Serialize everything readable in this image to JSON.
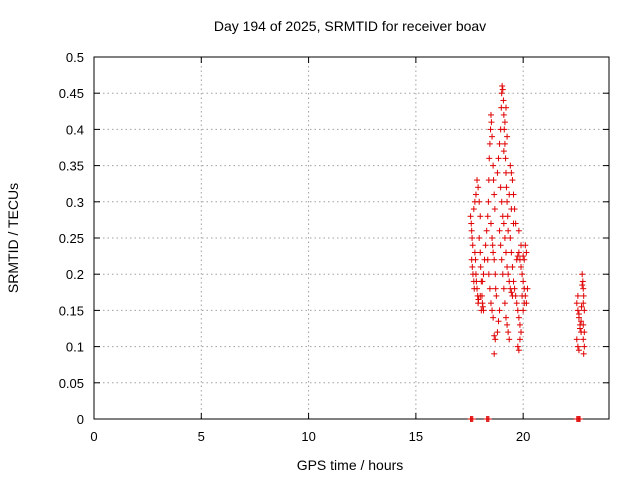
{
  "chart_data": {
    "type": "scatter",
    "title": "Day 194 of 2025, SRMTID for receiver boav",
    "xlabel": "GPS time / hours",
    "ylabel": "SRMTID / TECUs",
    "xlim": [
      0,
      24
    ],
    "ylim": [
      0,
      0.5
    ],
    "xticks": [
      0,
      5,
      10,
      15,
      20
    ],
    "xtick_labels": [
      "0",
      "5",
      "10",
      "15",
      "20"
    ],
    "yticks": [
      0,
      0.05,
      0.1,
      0.15,
      0.2,
      0.25,
      0.3,
      0.35,
      0.4,
      0.45,
      0.5
    ],
    "ytick_labels": [
      "0",
      "0.05",
      "0.1",
      "0.15",
      "0.2",
      "0.25",
      "0.3",
      "0.35",
      "0.4",
      "0.45",
      "0.5"
    ],
    "grid": true,
    "marker": "+",
    "color": "#e00000",
    "points": [
      [
        17.55,
        0.28
      ],
      [
        17.58,
        0.27
      ],
      [
        17.6,
        0.26
      ],
      [
        17.62,
        0.25
      ],
      [
        17.65,
        0.24
      ],
      [
        17.6,
        0.22
      ],
      [
        17.63,
        0.21
      ],
      [
        17.66,
        0.2
      ],
      [
        17.7,
        0.19
      ],
      [
        17.72,
        0.18
      ],
      [
        17.75,
        0.23
      ],
      [
        17.78,
        0.22
      ],
      [
        17.8,
        0.2
      ],
      [
        17.82,
        0.19
      ],
      [
        17.85,
        0.18
      ],
      [
        17.88,
        0.17
      ],
      [
        17.9,
        0.16
      ],
      [
        17.7,
        0.29
      ],
      [
        17.75,
        0.3
      ],
      [
        17.8,
        0.31
      ],
      [
        17.85,
        0.33
      ],
      [
        17.9,
        0.32
      ],
      [
        17.95,
        0.3
      ],
      [
        18.0,
        0.28
      ],
      [
        17.95,
        0.25
      ],
      [
        18.0,
        0.23
      ],
      [
        18.02,
        0.21
      ],
      [
        18.05,
        0.19
      ],
      [
        18.08,
        0.17
      ],
      [
        18.1,
        0.16
      ],
      [
        18.12,
        0.155
      ],
      [
        18.15,
        0.15
      ],
      [
        18.0,
        0.17
      ],
      [
        17.92,
        0.165
      ],
      [
        18.05,
        0.15
      ],
      [
        18.1,
        0.19
      ],
      [
        18.15,
        0.2
      ],
      [
        18.2,
        0.22
      ],
      [
        18.25,
        0.24
      ],
      [
        18.3,
        0.26
      ],
      [
        18.35,
        0.28
      ],
      [
        18.38,
        0.3
      ],
      [
        18.4,
        0.33
      ],
      [
        18.42,
        0.36
      ],
      [
        18.45,
        0.38
      ],
      [
        18.48,
        0.4
      ],
      [
        18.5,
        0.42
      ],
      [
        18.52,
        0.41
      ],
      [
        18.55,
        0.39
      ],
      [
        18.6,
        0.35
      ],
      [
        18.62,
        0.33
      ],
      [
        18.65,
        0.31
      ],
      [
        18.68,
        0.29
      ],
      [
        18.5,
        0.27
      ],
      [
        18.55,
        0.25
      ],
      [
        18.58,
        0.24
      ],
      [
        18.6,
        0.23
      ],
      [
        18.65,
        0.22
      ],
      [
        18.7,
        0.2
      ],
      [
        18.72,
        0.18
      ],
      [
        18.75,
        0.17
      ],
      [
        18.5,
        0.16
      ],
      [
        18.55,
        0.15
      ],
      [
        18.6,
        0.14
      ],
      [
        18.65,
        0.115
      ],
      [
        18.7,
        0.11
      ],
      [
        18.65,
        0.09
      ],
      [
        18.8,
        0.12
      ],
      [
        18.85,
        0.135
      ],
      [
        18.9,
        0.15
      ],
      [
        18.8,
        0.34
      ],
      [
        18.85,
        0.36
      ],
      [
        18.9,
        0.38
      ],
      [
        18.95,
        0.4
      ],
      [
        18.98,
        0.43
      ],
      [
        19.0,
        0.45
      ],
      [
        19.02,
        0.46
      ],
      [
        19.05,
        0.455
      ],
      [
        19.08,
        0.44
      ],
      [
        19.1,
        0.42
      ],
      [
        19.12,
        0.4
      ],
      [
        19.15,
        0.38
      ],
      [
        19.18,
        0.36
      ],
      [
        19.2,
        0.34
      ],
      [
        19.22,
        0.32
      ],
      [
        19.25,
        0.3
      ],
      [
        19.28,
        0.28
      ],
      [
        19.3,
        0.26
      ],
      [
        18.95,
        0.32
      ],
      [
        19.0,
        0.3
      ],
      [
        19.05,
        0.28
      ],
      [
        19.1,
        0.27
      ],
      [
        19.15,
        0.25
      ],
      [
        19.2,
        0.23
      ],
      [
        19.25,
        0.21
      ],
      [
        19.3,
        0.2
      ],
      [
        19.35,
        0.19
      ],
      [
        19.4,
        0.18
      ],
      [
        19.45,
        0.175
      ],
      [
        19.5,
        0.17
      ],
      [
        18.9,
        0.26
      ],
      [
        18.95,
        0.24
      ],
      [
        19.0,
        0.22
      ],
      [
        19.05,
        0.2
      ],
      [
        19.1,
        0.18
      ],
      [
        19.15,
        0.16
      ],
      [
        19.2,
        0.14
      ],
      [
        19.25,
        0.13
      ],
      [
        19.3,
        0.12
      ],
      [
        19.35,
        0.11
      ],
      [
        19.4,
        0.35
      ],
      [
        19.45,
        0.34
      ],
      [
        19.5,
        0.33
      ],
      [
        19.55,
        0.31
      ],
      [
        19.6,
        0.29
      ],
      [
        19.65,
        0.27
      ],
      [
        19.4,
        0.25
      ],
      [
        19.45,
        0.23
      ],
      [
        19.5,
        0.21
      ],
      [
        19.55,
        0.19
      ],
      [
        19.6,
        0.18
      ],
      [
        19.65,
        0.17
      ],
      [
        19.7,
        0.16
      ],
      [
        19.75,
        0.15
      ],
      [
        19.8,
        0.14
      ],
      [
        19.85,
        0.13
      ],
      [
        19.9,
        0.12
      ],
      [
        19.75,
        0.1
      ],
      [
        19.8,
        0.095
      ],
      [
        19.85,
        0.11
      ],
      [
        19.7,
        0.22
      ],
      [
        19.75,
        0.225
      ],
      [
        19.8,
        0.23
      ],
      [
        19.85,
        0.22
      ],
      [
        19.9,
        0.21
      ],
      [
        19.95,
        0.2
      ],
      [
        20.0,
        0.19
      ],
      [
        20.05,
        0.18
      ],
      [
        20.1,
        0.17
      ],
      [
        20.15,
        0.16
      ],
      [
        20.0,
        0.225
      ],
      [
        20.05,
        0.22
      ],
      [
        20.1,
        0.24
      ],
      [
        20.15,
        0.23
      ],
      [
        20.2,
        0.18
      ],
      [
        20.0,
        0.15
      ],
      [
        20.05,
        0.16
      ],
      [
        19.95,
        0.17
      ],
      [
        19.9,
        0.24
      ],
      [
        19.8,
        0.26
      ],
      [
        19.2,
        0.43
      ],
      [
        19.15,
        0.41
      ],
      [
        19.25,
        0.39
      ],
      [
        19.1,
        0.37
      ],
      [
        19.35,
        0.31
      ],
      [
        19.45,
        0.29
      ],
      [
        19.55,
        0.27
      ],
      [
        18.4,
        0.2
      ],
      [
        18.45,
        0.18
      ],
      [
        18.35,
        0.22
      ],
      [
        22.5,
        0.16
      ],
      [
        22.55,
        0.15
      ],
      [
        22.6,
        0.14
      ],
      [
        22.65,
        0.13
      ],
      [
        22.7,
        0.12
      ],
      [
        22.55,
        0.17
      ],
      [
        22.6,
        0.145
      ],
      [
        22.5,
        0.11
      ],
      [
        22.55,
        0.1
      ],
      [
        22.6,
        0.095
      ],
      [
        22.75,
        0.2
      ],
      [
        22.78,
        0.19
      ],
      [
        22.8,
        0.18
      ],
      [
        22.82,
        0.17
      ],
      [
        22.75,
        0.185
      ],
      [
        22.8,
        0.16
      ],
      [
        22.85,
        0.15
      ],
      [
        22.8,
        0.13
      ],
      [
        22.85,
        0.12
      ],
      [
        22.8,
        0.11
      ],
      [
        22.85,
        0.1
      ],
      [
        22.82,
        0.09
      ],
      [
        22.7,
        0.135
      ],
      [
        22.65,
        0.125
      ],
      [
        22.72,
        0.155
      ]
    ],
    "zero_points": [
      [
        17.55,
        0
      ],
      [
        17.6,
        0
      ],
      [
        17.65,
        0
      ],
      [
        18.3,
        0
      ],
      [
        18.35,
        0
      ],
      [
        18.4,
        0
      ],
      [
        22.5,
        0
      ],
      [
        22.55,
        0
      ],
      [
        22.6,
        0
      ],
      [
        22.65,
        0
      ]
    ]
  }
}
